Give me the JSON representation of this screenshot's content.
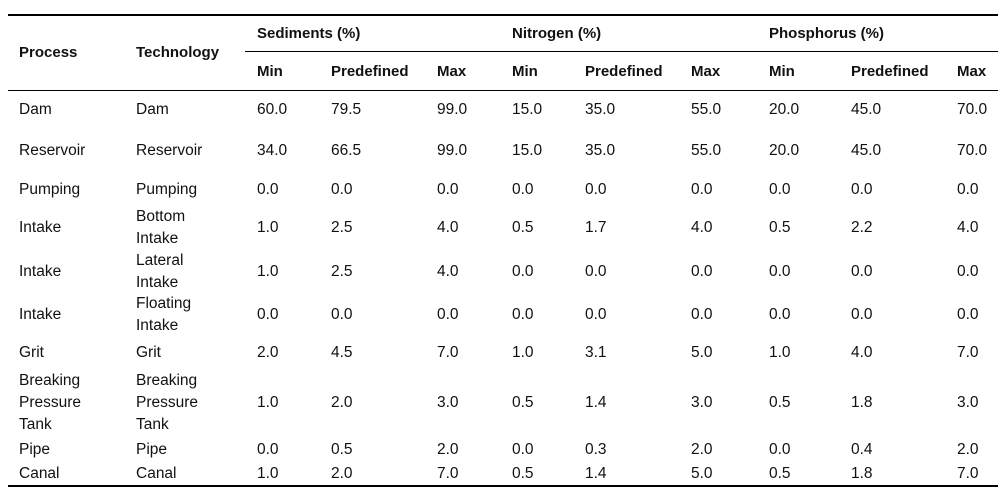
{
  "table": {
    "headers": {
      "process": "Process",
      "technology": "Technology",
      "groups": [
        "Sediments (%)",
        "Nitrogen (%)",
        "Phosphorus (%)"
      ],
      "sub": [
        "Min",
        "Predefined",
        "Max"
      ]
    },
    "rows": [
      {
        "process": [
          "Dam"
        ],
        "technology": [
          "Dam"
        ],
        "values": [
          "60.0",
          "79.5",
          "99.0",
          "15.0",
          "35.0",
          "55.0",
          "20.0",
          "45.0",
          "70.0"
        ]
      },
      {
        "process": [
          "Reservoir"
        ],
        "technology": [
          "Reservoir"
        ],
        "values": [
          "34.0",
          "66.5",
          "99.0",
          "15.0",
          "35.0",
          "55.0",
          "20.0",
          "45.0",
          "70.0"
        ]
      },
      {
        "process": [
          "Pumping"
        ],
        "technology": [
          "Pumping"
        ],
        "values": [
          "0.0",
          "0.0",
          "0.0",
          "0.0",
          "0.0",
          "0.0",
          "0.0",
          "0.0",
          "0.0"
        ]
      },
      {
        "process": [
          "Intake"
        ],
        "technology": [
          "Bottom",
          "Intake"
        ],
        "values": [
          "1.0",
          "2.5",
          "4.0",
          "0.5",
          "1.7",
          "4.0",
          "0.5",
          "2.2",
          "4.0"
        ]
      },
      {
        "process": [
          "Intake"
        ],
        "technology": [
          "Lateral",
          "Intake"
        ],
        "values": [
          "1.0",
          "2.5",
          "4.0",
          "0.0",
          "0.0",
          "0.0",
          "0.0",
          "0.0",
          "0.0"
        ]
      },
      {
        "process": [
          "Intake"
        ],
        "technology": [
          "Floating",
          "Intake"
        ],
        "values": [
          "0.0",
          "0.0",
          "0.0",
          "0.0",
          "0.0",
          "0.0",
          "0.0",
          "0.0",
          "0.0"
        ]
      },
      {
        "process": [
          "Grit"
        ],
        "technology": [
          "Grit"
        ],
        "values": [
          "2.0",
          "4.5",
          "7.0",
          "1.0",
          "3.1",
          "5.0",
          "1.0",
          "4.0",
          "7.0"
        ]
      },
      {
        "process": [
          "Breaking",
          "Pressure",
          "Tank"
        ],
        "technology": [
          "Breaking",
          "Pressure",
          "Tank"
        ],
        "values": [
          "1.0",
          "2.0",
          "3.0",
          "0.5",
          "1.4",
          "3.0",
          "0.5",
          "1.8",
          "3.0"
        ]
      },
      {
        "process": [
          "Pipe"
        ],
        "technology": [
          "Pipe"
        ],
        "values": [
          "0.0",
          "0.5",
          "2.0",
          "0.0",
          "0.3",
          "2.0",
          "0.0",
          "0.4",
          "2.0"
        ]
      },
      {
        "process": [
          "Canal"
        ],
        "technology": [
          "Canal"
        ],
        "values": [
          "1.0",
          "2.0",
          "7.0",
          "0.5",
          "1.4",
          "5.0",
          "0.5",
          "1.8",
          "7.0"
        ]
      }
    ]
  }
}
